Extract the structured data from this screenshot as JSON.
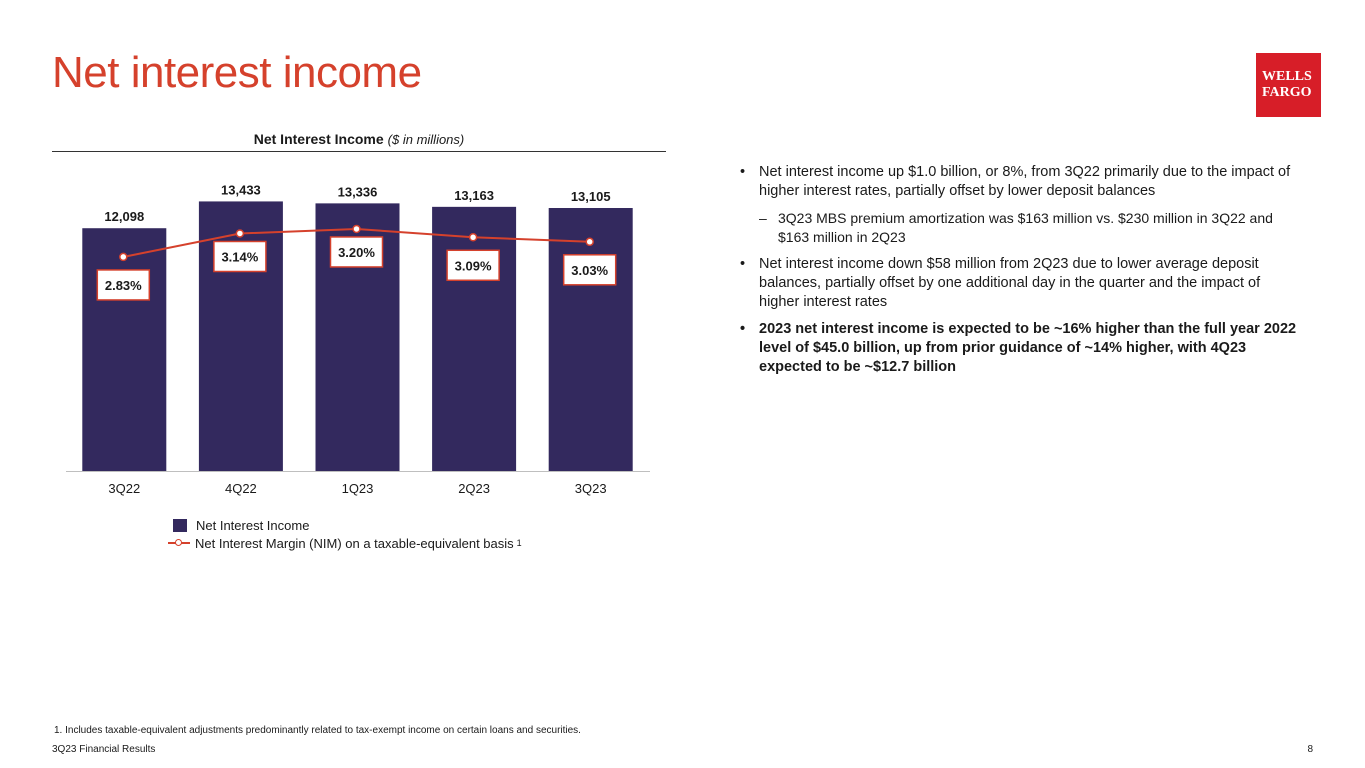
{
  "page": {
    "title": "Net interest income",
    "logo_line1": "WELLS",
    "logo_line2": "FARGO",
    "footer_left": "3Q23 Financial Results",
    "page_number": "8",
    "footnote": "1. Includes taxable-equivalent adjustments predominantly related to tax-exempt income on certain loans and securities."
  },
  "chart_data": {
    "type": "bar",
    "title": "Net Interest Income",
    "title_units": "($ in millions)",
    "categories": [
      "3Q22",
      "4Q22",
      "1Q23",
      "2Q23",
      "3Q23"
    ],
    "series": [
      {
        "name": "Net Interest Income",
        "type": "bar",
        "values": [
          12098,
          13433,
          13336,
          13163,
          13105
        ],
        "labels": [
          "12,098",
          "13,433",
          "13,336",
          "13,163",
          "13,105"
        ],
        "color": "#33295e"
      },
      {
        "name": "Net Interest Margin (NIM) on a taxable-equivalent basis",
        "type": "line",
        "values": [
          2.83,
          3.14,
          3.2,
          3.09,
          3.03
        ],
        "labels": [
          "2.83%",
          "3.14%",
          "3.20%",
          "3.09%",
          "3.03%"
        ],
        "color": "#d5412c"
      }
    ],
    "ylim": [
      0,
      14700
    ],
    "y2lim": [
      0,
      3.9
    ],
    "legend": {
      "bar_label": "Net Interest Income",
      "line_label": "Net Interest Margin (NIM) on a taxable-equivalent basis",
      "line_footnote_ref": "1"
    }
  },
  "bullets": [
    {
      "text": "Net interest income up $1.0 billion, or 8%, from 3Q22 primarily due to the impact of higher interest rates, partially offset by lower deposit balances",
      "bold": false
    },
    {
      "sub": "3Q23 MBS premium amortization was $163 million vs. $230 million in 3Q22 and $163 million in 2Q23"
    },
    {
      "text": "Net interest income down $58 million from 2Q23 due to lower average deposit balances, partially offset by one additional day in the quarter and the impact of higher interest rates",
      "bold": false
    },
    {
      "text": "2023 net interest income is expected to be ~16% higher than the full year 2022 level of $45.0 billion, up from prior guidance of ~14% higher, with 4Q23 expected to be ~$12.7 billion",
      "bold": true
    }
  ]
}
